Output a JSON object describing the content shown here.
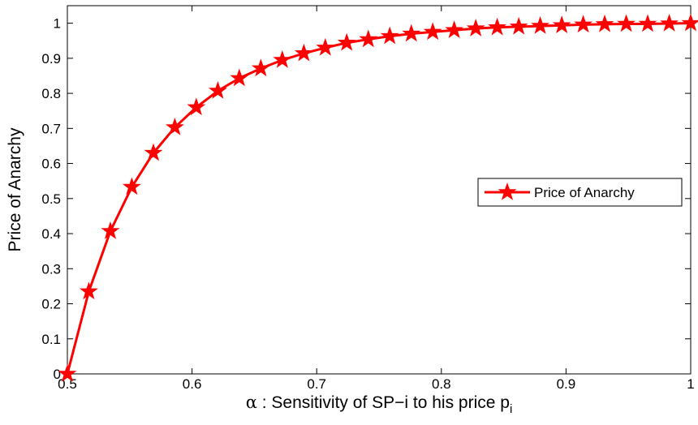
{
  "chart_data": {
    "type": "line",
    "xlabel": {
      "symbol": "α",
      "text": " : Sensitivity of SP−i to his price p",
      "subscript": "i"
    },
    "ylabel": "Price of Anarchy",
    "xlim": [
      0.5,
      1
    ],
    "ylim": [
      0,
      1.05
    ],
    "xticks": [
      0.5,
      0.6,
      0.7,
      0.8,
      0.9,
      1
    ],
    "xtick_labels": [
      "0.5",
      "0.6",
      "0.7",
      "0.8",
      "0.9",
      "1"
    ],
    "yticks": [
      0,
      0.1,
      0.2,
      0.3,
      0.4,
      0.5,
      0.6,
      0.7,
      0.8,
      0.9,
      1
    ],
    "ytick_labels": [
      "0",
      "0.1",
      "0.2",
      "0.3",
      "0.4",
      "0.5",
      "0.6",
      "0.7",
      "0.8",
      "0.9",
      "1"
    ],
    "grid": false,
    "legend_position": "right",
    "series": [
      {
        "name": "Price of Anarchy",
        "color": "#ff0000",
        "marker": "pentagram",
        "x": [
          0.5,
          0.5172,
          0.5345,
          0.5517,
          0.569,
          0.5862,
          0.6034,
          0.6207,
          0.6379,
          0.6552,
          0.6724,
          0.6897,
          0.7069,
          0.7241,
          0.7414,
          0.7586,
          0.7759,
          0.7931,
          0.8103,
          0.8276,
          0.8448,
          0.8621,
          0.8793,
          0.8966,
          0.9138,
          0.931,
          0.9483,
          0.9655,
          0.9828,
          1.0
        ],
        "y": [
          0.0,
          0.235,
          0.407,
          0.533,
          0.63,
          0.703,
          0.76,
          0.807,
          0.843,
          0.871,
          0.895,
          0.914,
          0.93,
          0.944,
          0.954,
          0.963,
          0.97,
          0.975,
          0.98,
          0.985,
          0.988,
          0.99,
          0.992,
          0.994,
          0.996,
          0.997,
          0.998,
          0.998,
          0.999,
          1.0
        ]
      }
    ]
  }
}
